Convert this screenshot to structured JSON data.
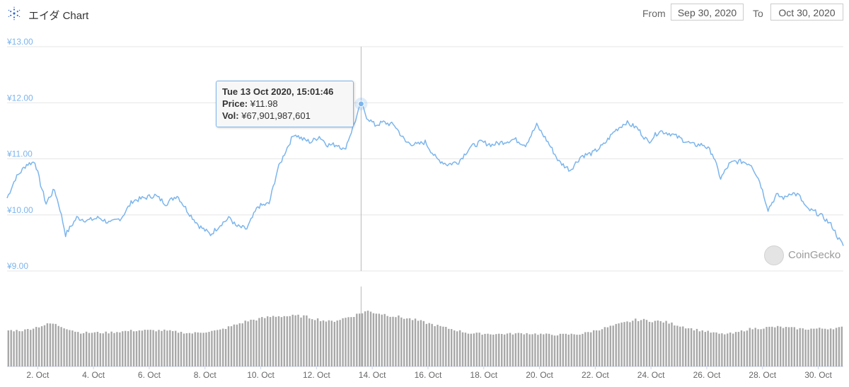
{
  "header": {
    "title": "エイダ Chart",
    "from_label": "From",
    "from_value": "Sep 30, 2020",
    "to_label": "To",
    "to_value": "Oct 30, 2020"
  },
  "tooltip": {
    "date": "Tue 13 Oct 2020, 15:01:46",
    "price_label": "Price:",
    "price_value": "¥11.98",
    "vol_label": "Vol:",
    "vol_value": "¥67,901,987,601"
  },
  "watermark": "CoinGecko",
  "colors": {
    "line": "#7cb5ec",
    "volume": "#a8a8a8",
    "grid": "#e6e6e6",
    "axis_text": "#7cb5ec"
  },
  "chart_data": [
    {
      "type": "line",
      "title": "エイダ Chart",
      "series": [
        {
          "name": "Price",
          "color": "#7cb5ec"
        }
      ],
      "ylim": [
        9,
        13
      ],
      "y_ticks": [
        "¥13.00",
        "¥12.00",
        "¥11.00",
        "¥10.00",
        "¥9.00"
      ],
      "y_tick_values": [
        13,
        12,
        11,
        10,
        9
      ],
      "xlim": [
        0.9,
        30.9
      ],
      "x_ticks": [
        "2. Oct",
        "4. Oct",
        "6. Oct",
        "8. Oct",
        "10. Oct",
        "12. Oct",
        "14. Oct",
        "16. Oct",
        "18. Oct",
        "20. Oct",
        "22. Oct",
        "24. Oct",
        "26. Oct",
        "28. Oct",
        "30. Oct"
      ],
      "x_tick_values": [
        2,
        4,
        6,
        8,
        10,
        12,
        14,
        16,
        18,
        20,
        22,
        24,
        26,
        28,
        30
      ],
      "x": [
        0.9,
        1.2,
        1.6,
        1.9,
        2.1,
        2.3,
        2.4,
        2.6,
        2.8,
        3.0,
        3.4,
        3.8,
        4.2,
        4.6,
        5.0,
        5.4,
        5.8,
        6.2,
        6.6,
        7.0,
        7.4,
        7.8,
        8.2,
        8.6,
        8.9,
        9.1,
        9.5,
        9.9,
        10.3,
        10.6,
        10.9,
        11.2,
        11.5,
        11.8,
        12.1,
        12.4,
        12.8,
        13.0,
        13.3,
        13.6,
        13.8,
        14.1,
        14.4,
        14.8,
        15.2,
        15.6,
        15.9,
        16.3,
        16.7,
        17.1,
        17.5,
        17.9,
        18.3,
        18.7,
        19.1,
        19.5,
        19.9,
        20.3,
        20.7,
        21.1,
        21.5,
        21.9,
        22.3,
        22.7,
        23.1,
        23.5,
        23.9,
        24.3,
        24.7,
        25.1,
        25.5,
        25.9,
        26.2,
        26.5,
        26.8,
        27.0,
        27.3,
        27.6,
        27.9,
        28.2,
        28.5,
        28.8,
        29.0,
        29.3,
        29.6,
        29.9,
        30.2,
        30.5,
        30.7,
        30.9
      ],
      "y": [
        10.3,
        10.65,
        10.9,
        10.95,
        10.55,
        10.2,
        10.3,
        10.45,
        10.1,
        9.65,
        9.95,
        9.9,
        9.95,
        9.85,
        9.95,
        10.25,
        10.3,
        10.35,
        10.2,
        10.35,
        10.05,
        9.8,
        9.65,
        9.85,
        9.95,
        9.8,
        9.75,
        10.15,
        10.2,
        10.8,
        11.15,
        11.45,
        11.35,
        11.3,
        11.4,
        11.25,
        11.25,
        11.15,
        11.55,
        11.98,
        11.75,
        11.6,
        11.65,
        11.6,
        11.3,
        11.25,
        11.3,
        11.0,
        10.9,
        10.95,
        11.2,
        11.3,
        11.25,
        11.3,
        11.35,
        11.25,
        11.6,
        11.3,
        10.95,
        10.8,
        11.05,
        11.1,
        11.25,
        11.5,
        11.65,
        11.55,
        11.3,
        11.5,
        11.45,
        11.35,
        11.25,
        11.25,
        11.1,
        10.65,
        10.9,
        10.95,
        10.95,
        10.9,
        10.6,
        10.1,
        10.35,
        10.3,
        10.4,
        10.35,
        10.1,
        10.05,
        9.95,
        9.8,
        9.6,
        9.45
      ],
      "grid": true,
      "legend": "none"
    },
    {
      "type": "bar",
      "series": [
        {
          "name": "Volume",
          "color": "#a8a8a8"
        }
      ],
      "relative_level_x": [
        0.9,
        1.5,
        2.5,
        3.5,
        4.5,
        5.5,
        6.5,
        7.5,
        8.5,
        9.5,
        10.5,
        11.5,
        12.5,
        13.3,
        13.8,
        14.5,
        15.5,
        16.5,
        17.5,
        18.5,
        19.5,
        20.5,
        21.5,
        22.5,
        23.5,
        24.5,
        25.5,
        26.5,
        27.0,
        27.5,
        28.5,
        29.5,
        30.5,
        30.9
      ],
      "relative_level": [
        0.5,
        0.5,
        0.6,
        0.47,
        0.47,
        0.5,
        0.5,
        0.46,
        0.5,
        0.63,
        0.7,
        0.7,
        0.62,
        0.7,
        0.77,
        0.72,
        0.65,
        0.55,
        0.46,
        0.45,
        0.46,
        0.44,
        0.45,
        0.55,
        0.65,
        0.62,
        0.52,
        0.45,
        0.46,
        0.52,
        0.55,
        0.52,
        0.53,
        0.54
      ]
    }
  ]
}
